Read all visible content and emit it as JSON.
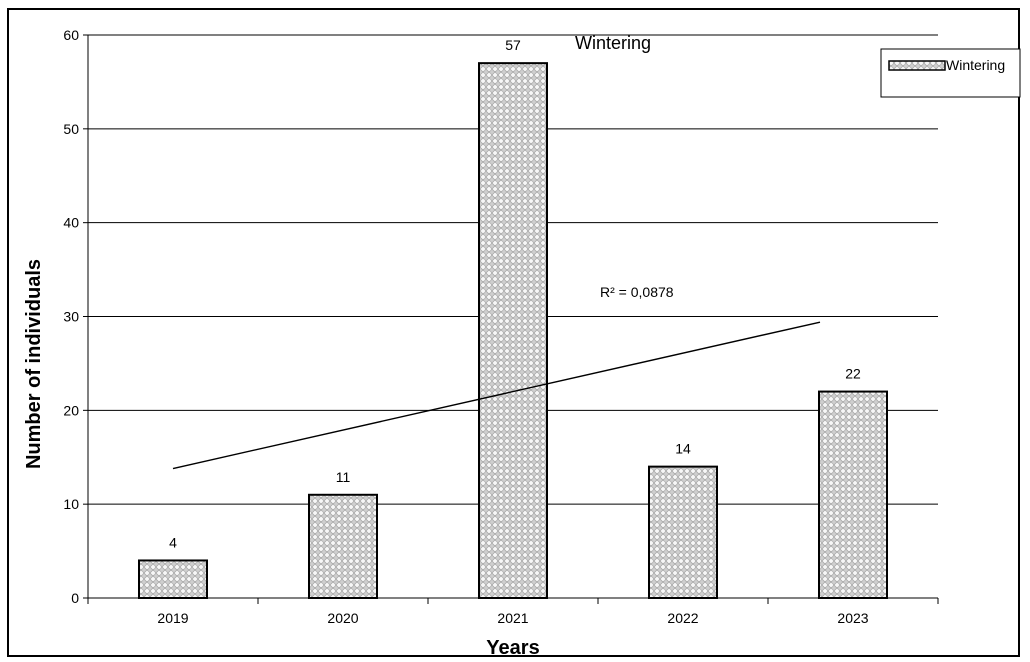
{
  "chart_data": {
    "type": "bar",
    "title": "Wintering",
    "xlabel": "Years",
    "ylabel": "Number of individuals",
    "categories": [
      "2019",
      "2020",
      "2021",
      "2022",
      "2023"
    ],
    "series": [
      {
        "name": "Wintering",
        "values": [
          4,
          11,
          57,
          14,
          22
        ]
      }
    ],
    "ylim": [
      0,
      60
    ],
    "yticks": [
      0,
      10,
      20,
      30,
      40,
      50,
      60
    ],
    "grid": true,
    "legend": "top-right",
    "trendline": {
      "type": "linear",
      "start_value": 13.8,
      "end_value": 29.4,
      "r2_label": "R² = 0,0878"
    },
    "colors": {
      "bar_fill": "#d9d9d9",
      "bar_dots": "#ffffff",
      "line": "#000000"
    }
  }
}
